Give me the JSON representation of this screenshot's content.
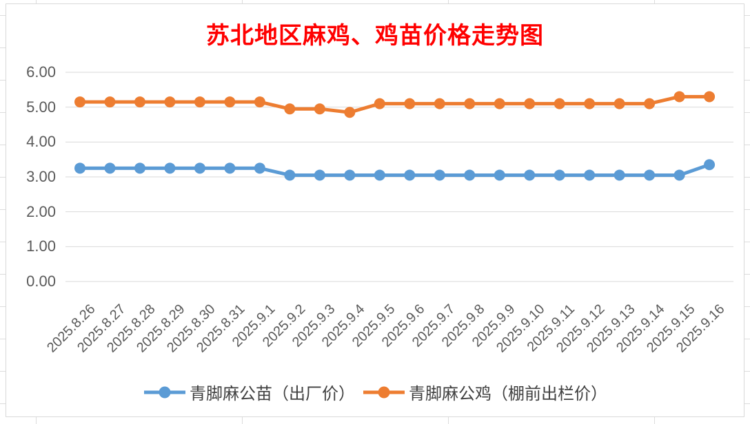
{
  "chart_data": {
    "type": "line",
    "title": "苏北地区麻鸡、鸡苗价格走势图",
    "title_color": "#FF0000",
    "xlabel": "",
    "ylabel": "",
    "ylim": [
      0,
      6
    ],
    "y_ticks": [
      "6.00",
      "5.00",
      "4.00",
      "3.00",
      "2.00",
      "1.00",
      "0.00"
    ],
    "grid": "horizontal",
    "gridline_color": "#D9D9D9",
    "tick_label_color": "#595959",
    "legend_position": "bottom",
    "categories": [
      "2025.8.26",
      "2025.8.27",
      "2025.8.28",
      "2025.8.29",
      "2025.8.30",
      "2025.8.31",
      "2025.9.1",
      "2025.9.2",
      "2025.9.3",
      "2025.9.4",
      "2025.9.5",
      "2025.9.6",
      "2025.9.7",
      "2025.9.8",
      "2025.9.9",
      "2025.9.10",
      "2025.9.11",
      "2025.9.12",
      "2025.9.13",
      "2025.9.14",
      "2025.9.15",
      "2025.9.16"
    ],
    "series": [
      {
        "id": "chick",
        "name": "青脚麻公苗（出厂价）",
        "color": "#5B9BD5",
        "values": [
          3.25,
          3.25,
          3.25,
          3.25,
          3.25,
          3.25,
          3.25,
          3.05,
          3.05,
          3.05,
          3.05,
          3.05,
          3.05,
          3.05,
          3.05,
          3.05,
          3.05,
          3.05,
          3.05,
          3.05,
          3.05,
          3.35
        ]
      },
      {
        "id": "rooster",
        "name": "青脚麻公鸡（棚前出栏价）",
        "color": "#ED7D31",
        "values": [
          5.15,
          5.15,
          5.15,
          5.15,
          5.15,
          5.15,
          5.15,
          4.95,
          4.95,
          4.85,
          5.1,
          5.1,
          5.1,
          5.1,
          5.1,
          5.1,
          5.1,
          5.1,
          5.1,
          5.1,
          5.3,
          5.3
        ]
      }
    ]
  }
}
